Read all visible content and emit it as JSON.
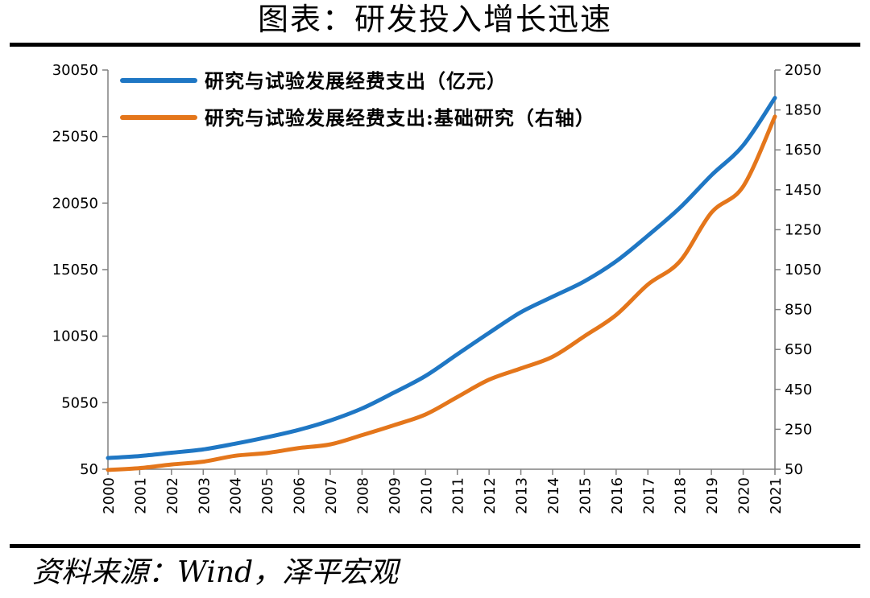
{
  "header": {
    "title": "图表：研发投入增长迅速"
  },
  "footer": {
    "source": "资料来源：Wind，泽平宏观"
  },
  "chart_data": {
    "type": "line",
    "title": "图表：研发投入增长迅速",
    "x": [
      2000,
      2001,
      2002,
      2003,
      2004,
      2005,
      2006,
      2007,
      2008,
      2009,
      2010,
      2011,
      2012,
      2013,
      2014,
      2015,
      2016,
      2017,
      2018,
      2019,
      2020,
      2021
    ],
    "series": [
      {
        "name": "研究与试验发展经费支出（亿元）",
        "axis": "left",
        "color": "#1F77C4",
        "values": [
          895.7,
          1042.5,
          1287.6,
          1539.6,
          1966.3,
          2450.0,
          3003.1,
          3710.2,
          4616.0,
          5802.1,
          7062.6,
          8687.0,
          10298.4,
          11846.6,
          13015.6,
          14169.9,
          15676.7,
          17606.1,
          19677.9,
          22143.6,
          24393.1,
          27956.3
        ]
      },
      {
        "name": "研究与试验发展经费支出:基础研究（右轴）",
        "axis": "right",
        "color": "#E4761B",
        "values": [
          46.7,
          55.6,
          73.8,
          87.7,
          117.2,
          131.2,
          155.8,
          174.5,
          220.8,
          270.3,
          324.5,
          411.8,
          498.8,
          555.0,
          613.5,
          716.1,
          822.9,
          975.5,
          1090.4,
          1335.6,
          1467.0,
          1817.0
        ]
      }
    ],
    "y_left": {
      "range": [
        50,
        30050
      ],
      "ticks": [
        "50",
        "5050",
        "10050",
        "15050",
        "20050",
        "25050",
        "30050"
      ]
    },
    "y_right": {
      "range": [
        50,
        2050
      ],
      "ticks": [
        "50",
        "250",
        "450",
        "650",
        "850",
        "1050",
        "1250",
        "1450",
        "1650",
        "1850",
        "2050"
      ]
    },
    "x_ticks": [
      "2000",
      "2001",
      "2002",
      "2003",
      "2004",
      "2005",
      "2006",
      "2007",
      "2008",
      "2009",
      "2010",
      "2011",
      "2012",
      "2013",
      "2014",
      "2015",
      "2016",
      "2017",
      "2018",
      "2019",
      "2020",
      "2021"
    ],
    "legend": "top-left",
    "grid": false
  }
}
